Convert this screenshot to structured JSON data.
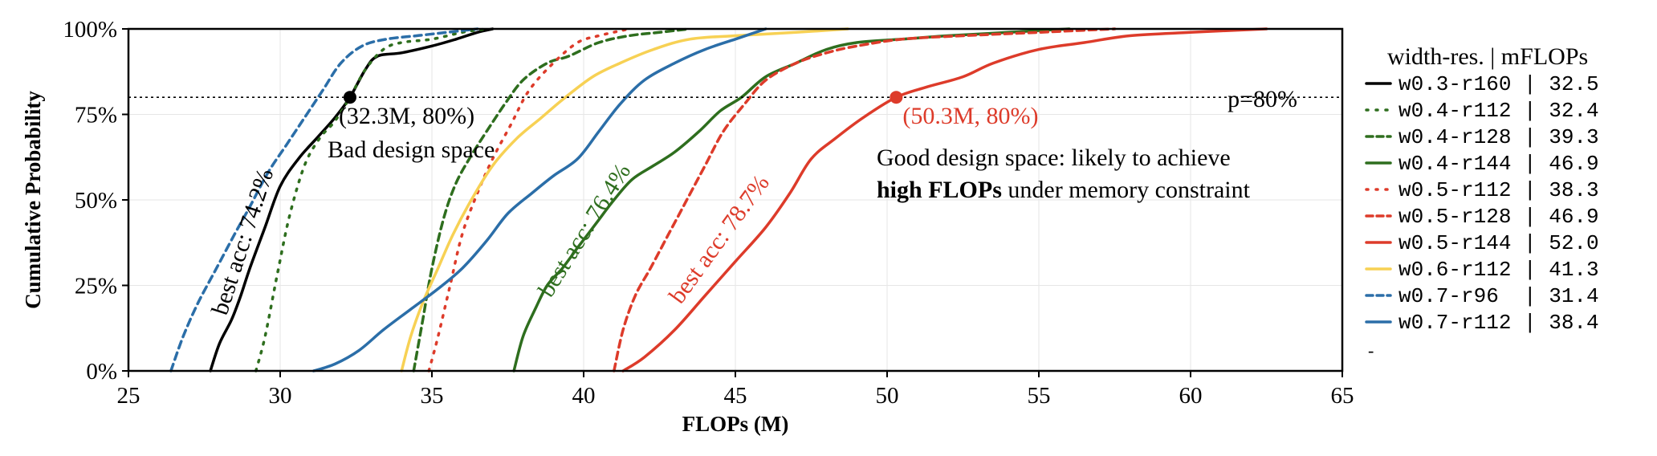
{
  "chart_data": {
    "type": "line",
    "xlabel": "FLOPs (M)",
    "ylabel": "Cumulative Probability",
    "xlim": [
      25,
      65
    ],
    "ylim": [
      0,
      100
    ],
    "xticks": [
      25,
      30,
      35,
      40,
      45,
      50,
      55,
      60,
      65
    ],
    "yticks": [
      0,
      25,
      50,
      75,
      100
    ],
    "ytick_labels": [
      "0%",
      "25%",
      "50%",
      "75%",
      "100%"
    ],
    "grid": true,
    "legend": {
      "placement": "right",
      "title": "width-res. | mFLOPs",
      "trailing_mark": "-"
    },
    "threshold": {
      "y": 80,
      "label": "p=80%",
      "color": "#000000"
    },
    "series": [
      {
        "name": "w0.3-r160",
        "mflops": "32.5",
        "color": "#000000",
        "style": "solid",
        "points": [
          [
            27.7,
            0
          ],
          [
            28.0,
            8
          ],
          [
            28.4,
            15
          ],
          [
            28.7,
            22
          ],
          [
            29.0,
            30
          ],
          [
            29.5,
            42
          ],
          [
            30.0,
            54
          ],
          [
            30.6,
            62
          ],
          [
            31.2,
            68
          ],
          [
            31.8,
            74
          ],
          [
            32.3,
            80
          ],
          [
            32.8,
            88
          ],
          [
            33.2,
            92
          ],
          [
            34.0,
            93
          ],
          [
            35.0,
            95
          ],
          [
            35.8,
            97
          ],
          [
            36.5,
            99
          ],
          [
            37.0,
            100
          ]
        ]
      },
      {
        "name": "w0.4-r112",
        "mflops": "32.4",
        "color": "#2e6e1e",
        "style": "dotted",
        "points": [
          [
            29.2,
            0
          ],
          [
            29.5,
            10
          ],
          [
            29.9,
            28
          ],
          [
            30.3,
            45
          ],
          [
            30.8,
            60
          ],
          [
            31.3,
            68
          ],
          [
            31.8,
            73
          ],
          [
            32.3,
            80
          ],
          [
            32.8,
            88
          ],
          [
            33.4,
            94
          ],
          [
            34.0,
            96
          ],
          [
            35.0,
            97
          ],
          [
            36.0,
            99
          ],
          [
            36.8,
            100
          ]
        ]
      },
      {
        "name": "w0.4-r128",
        "mflops": "39.3",
        "color": "#2e6e1e",
        "style": "dashed",
        "points": [
          [
            34.4,
            0
          ],
          [
            34.7,
            15
          ],
          [
            35.0,
            30
          ],
          [
            35.4,
            45
          ],
          [
            35.8,
            55
          ],
          [
            36.3,
            63
          ],
          [
            36.8,
            70
          ],
          [
            37.4,
            78
          ],
          [
            38.0,
            85
          ],
          [
            38.8,
            90
          ],
          [
            39.5,
            92
          ],
          [
            40.5,
            96
          ],
          [
            41.5,
            98
          ],
          [
            42.5,
            99
          ],
          [
            43.5,
            100
          ]
        ]
      },
      {
        "name": "w0.4-r144",
        "mflops": "46.9",
        "color": "#2e6e1e",
        "style": "solid",
        "points": [
          [
            37.7,
            0
          ],
          [
            38.0,
            10
          ],
          [
            38.4,
            18
          ],
          [
            38.8,
            25
          ],
          [
            39.3,
            30
          ],
          [
            39.8,
            36
          ],
          [
            40.4,
            43
          ],
          [
            41.0,
            50
          ],
          [
            41.6,
            56
          ],
          [
            42.3,
            60
          ],
          [
            43.0,
            64
          ],
          [
            43.8,
            70
          ],
          [
            44.5,
            76
          ],
          [
            45.2,
            80
          ],
          [
            46.0,
            86
          ],
          [
            47.0,
            90
          ],
          [
            48.0,
            94
          ],
          [
            49.0,
            96
          ],
          [
            50.5,
            97
          ],
          [
            52.0,
            98
          ],
          [
            54.0,
            99
          ],
          [
            56.0,
            100
          ]
        ]
      },
      {
        "name": "w0.5-r112",
        "mflops": "38.3",
        "color": "#dd3b2a",
        "style": "dotted",
        "points": [
          [
            34.9,
            0
          ],
          [
            35.2,
            10
          ],
          [
            35.6,
            25
          ],
          [
            36.0,
            40
          ],
          [
            36.5,
            52
          ],
          [
            37.0,
            62
          ],
          [
            37.6,
            72
          ],
          [
            38.2,
            82
          ],
          [
            39.0,
            90
          ],
          [
            39.8,
            96
          ],
          [
            40.5,
            98
          ],
          [
            41.5,
            100
          ]
        ]
      },
      {
        "name": "w0.5-r128",
        "mflops": "46.9",
        "color": "#dd3b2a",
        "style": "dashed",
        "points": [
          [
            41.0,
            0
          ],
          [
            41.3,
            12
          ],
          [
            41.7,
            22
          ],
          [
            42.2,
            30
          ],
          [
            42.8,
            40
          ],
          [
            43.4,
            50
          ],
          [
            44.0,
            60
          ],
          [
            44.6,
            70
          ],
          [
            45.3,
            78
          ],
          [
            46.0,
            85
          ],
          [
            47.0,
            90
          ],
          [
            48.0,
            93
          ],
          [
            49.0,
            95
          ],
          [
            50.5,
            97
          ],
          [
            52.5,
            98
          ],
          [
            55.0,
            99
          ],
          [
            57.5,
            100
          ]
        ]
      },
      {
        "name": "w0.5-r144",
        "mflops": "52.0",
        "color": "#dd3b2a",
        "style": "solid",
        "points": [
          [
            41.3,
            0
          ],
          [
            42.0,
            4
          ],
          [
            43.0,
            12
          ],
          [
            44.0,
            22
          ],
          [
            45.0,
            32
          ],
          [
            46.0,
            42
          ],
          [
            46.8,
            52
          ],
          [
            47.5,
            62
          ],
          [
            48.3,
            68
          ],
          [
            49.2,
            74
          ],
          [
            50.3,
            80
          ],
          [
            51.3,
            83
          ],
          [
            52.5,
            86
          ],
          [
            53.5,
            90
          ],
          [
            55.0,
            94
          ],
          [
            56.5,
            96
          ],
          [
            58.0,
            98
          ],
          [
            60.0,
            99
          ],
          [
            62.5,
            100
          ]
        ]
      },
      {
        "name": "w0.6-r112",
        "mflops": "41.3",
        "color": "#f7d154",
        "style": "solid",
        "points": [
          [
            34.0,
            0
          ],
          [
            34.3,
            10
          ],
          [
            34.7,
            20
          ],
          [
            35.2,
            30
          ],
          [
            35.7,
            40
          ],
          [
            36.3,
            50
          ],
          [
            37.0,
            60
          ],
          [
            37.8,
            68
          ],
          [
            38.6,
            74
          ],
          [
            39.4,
            80
          ],
          [
            40.3,
            86
          ],
          [
            41.2,
            90
          ],
          [
            42.3,
            94
          ],
          [
            43.5,
            97
          ],
          [
            45.0,
            98
          ],
          [
            47.0,
            99
          ],
          [
            48.7,
            100
          ]
        ]
      },
      {
        "name": "w0.7-r96",
        "mflops": "31.4",
        "color": "#2b6ea8",
        "style": "dashed",
        "points": [
          [
            26.4,
            0
          ],
          [
            26.8,
            10
          ],
          [
            27.3,
            20
          ],
          [
            27.9,
            30
          ],
          [
            28.5,
            40
          ],
          [
            29.0,
            48
          ],
          [
            29.6,
            58
          ],
          [
            30.2,
            66
          ],
          [
            30.8,
            74
          ],
          [
            31.4,
            82
          ],
          [
            32.0,
            90
          ],
          [
            32.7,
            95
          ],
          [
            33.5,
            97
          ],
          [
            34.5,
            98
          ],
          [
            35.5,
            99
          ],
          [
            36.5,
            100
          ]
        ]
      },
      {
        "name": "w0.7-r112",
        "mflops": "38.4",
        "color": "#2b6ea8",
        "style": "solid",
        "points": [
          [
            31.1,
            0
          ],
          [
            31.8,
            2
          ],
          [
            32.6,
            6
          ],
          [
            33.4,
            12
          ],
          [
            34.3,
            18
          ],
          [
            35.2,
            24
          ],
          [
            36.0,
            30
          ],
          [
            36.8,
            38
          ],
          [
            37.5,
            46
          ],
          [
            38.3,
            52
          ],
          [
            39.0,
            57
          ],
          [
            39.8,
            62
          ],
          [
            40.5,
            70
          ],
          [
            41.2,
            78
          ],
          [
            42.0,
            85
          ],
          [
            43.0,
            90
          ],
          [
            44.0,
            94
          ],
          [
            45.0,
            97
          ],
          [
            46.0,
            100
          ]
        ]
      }
    ],
    "points": [
      {
        "x": 32.3,
        "y": 80,
        "label": "(32.3M, 80%)",
        "color": "#000000"
      },
      {
        "x": 50.3,
        "y": 80,
        "label": "(50.3M, 80%)",
        "color": "#dd3b2a"
      }
    ],
    "annotations": {
      "bad_space": "Bad design space",
      "good_line1": "Good design space: likely to achieve",
      "good_bold": "high FLOPs",
      "good_rest": " under memory constraint",
      "acc_742": "best acc: 74.2%",
      "acc_764": "best acc: 76.4%",
      "acc_787": "best acc: 78.7%"
    }
  }
}
